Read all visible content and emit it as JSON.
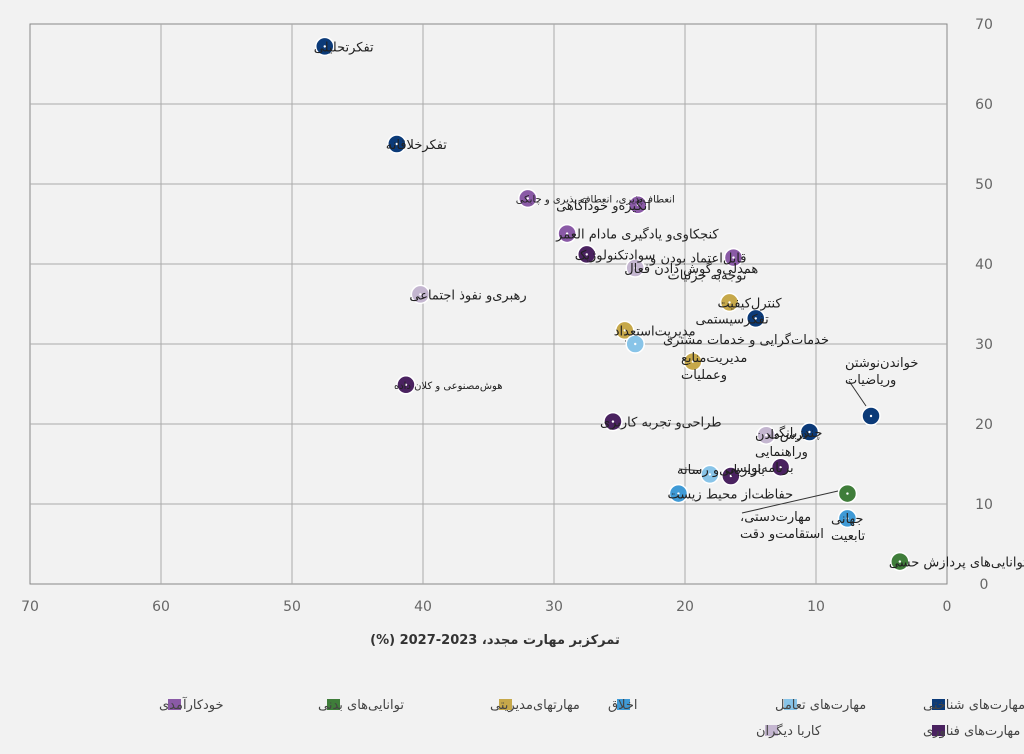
{
  "chart_data": {
    "type": "scatter",
    "xlabel": "تمرکزبر مهارت مجدد، 2023-2027 (%)",
    "xlim": [
      70,
      0
    ],
    "ylim": [
      0,
      70
    ],
    "x_ticks": [
      70,
      60,
      50,
      40,
      30,
      20,
      10,
      0
    ],
    "y_ticks": [
      0,
      10,
      20,
      30,
      40,
      50,
      60,
      70
    ],
    "grid": true,
    "legend_position": "bottom",
    "categories": [
      {
        "id": "cognitive",
        "name": "مهارت‌های شناختی",
        "color": "#0b3a78"
      },
      {
        "id": "engagement",
        "name": "مهارت‌های تعامل",
        "color": "#88c4e8"
      },
      {
        "id": "ethics",
        "name": "اخلاق",
        "color": "#3f9ad6"
      },
      {
        "id": "management",
        "name": "مهارتهای‌مدیریتی",
        "color": "#c6a84a"
      },
      {
        "id": "physical",
        "name": "توانایی‌های بدنی",
        "color": "#3f7d3a"
      },
      {
        "id": "selfefficacy",
        "name": "خودکارآمدی",
        "color": "#8a5aa6"
      },
      {
        "id": "technology",
        "name": "مهارت‌های فناوری",
        "color": "#4a2260"
      },
      {
        "id": "working",
        "name": "کاربا دیگران",
        "color": "#c4b6d0"
      }
    ],
    "points": [
      {
        "label": "تفکرتحلیلی",
        "x": 47.5,
        "y": 67.2,
        "category": "cognitive"
      },
      {
        "label": "تفکرخلاقانه",
        "x": 42.0,
        "y": 55.0,
        "category": "cognitive"
      },
      {
        "label": "انعطاف‌پذیری، انعطاف پذیری و چابکی",
        "x": 32.0,
        "y": 48.2,
        "category": "selfefficacy",
        "small": true
      },
      {
        "label": "انگیزه‌و خودآگاهی",
        "x": 23.6,
        "y": 47.4,
        "category": "selfefficacy"
      },
      {
        "label": "کنجکاوی‌و یادگیری مادام العمر",
        "x": 29.0,
        "y": 43.8,
        "category": "selfefficacy"
      },
      {
        "label": "سوادتکنولوژیک",
        "x": 27.5,
        "y": 41.2,
        "category": "technology"
      },
      {
        "label": "قابل‌اعتماد بودن و",
        "label2": "توجه‌به جزئیات",
        "x": 16.3,
        "y": 40.8,
        "category": "selfefficacy"
      },
      {
        "label": "همدلی‌و گوش دادن فعال",
        "x": 23.8,
        "y": 39.5,
        "category": "working"
      },
      {
        "label": "رهبری‌و نفوذ اجتماعی",
        "x": 40.2,
        "y": 36.2,
        "category": "working"
      },
      {
        "label": "کنترل‌کیفیت",
        "x": 16.6,
        "y": 35.2,
        "category": "management"
      },
      {
        "label": "تفکرسیستمی",
        "x": 14.6,
        "y": 33.2,
        "category": "cognitive"
      },
      {
        "label": "مدیریت‌استعداد",
        "x": 24.6,
        "y": 31.7,
        "category": "management"
      },
      {
        "label": "خدمات‌گرایی و خدمات مشتری",
        "x": 23.8,
        "y": 30.0,
        "category": "engagement"
      },
      {
        "label": "مدیریت‌منابع",
        "label2": "وعملیات",
        "x": 19.4,
        "y": 27.8,
        "category": "management"
      },
      {
        "label": "خواندن‌نوشتن",
        "label2": "وریاضیات",
        "x": 5.8,
        "y": 21.0,
        "category": "cognitive"
      },
      {
        "label": "هوش‌مصنوعی و کلان داده",
        "x": 41.3,
        "y": 24.9,
        "category": "technology",
        "small": true
      },
      {
        "label": "طراحی‌و تجربه کاربری",
        "x": 25.5,
        "y": 20.3,
        "category": "technology"
      },
      {
        "label": "چندزبانگی",
        "x": 10.5,
        "y": 19.0,
        "category": "cognitive"
      },
      {
        "label": "درس‌دادن",
        "label2": "وراهنمایی",
        "x": 13.8,
        "y": 18.6,
        "category": "working"
      },
      {
        "label": "برنامه‌نویسی",
        "x": 12.7,
        "y": 14.6,
        "category": "technology"
      },
      {
        "label": "بازاریابی‌و رسانه",
        "x": 18.1,
        "y": 13.7,
        "category": "engagement"
      },
      {
        "label": "",
        "x": 16.5,
        "y": 13.5,
        "category": "technology"
      },
      {
        "label": "حفاظت‌از محیط زیست",
        "x": 20.5,
        "y": 11.3,
        "category": "ethics"
      },
      {
        "label": "مهارت‌دستی،",
        "label2": "استقامت‌و دقت",
        "x": 7.6,
        "y": 11.3,
        "category": "physical"
      },
      {
        "label": "جهانی",
        "label2": "تابعیت",
        "x": 7.6,
        "y": 8.2,
        "category": "ethics"
      },
      {
        "label": "توانایی‌های پردازش حسی",
        "x": 3.6,
        "y": 2.8,
        "category": "physical"
      }
    ]
  }
}
